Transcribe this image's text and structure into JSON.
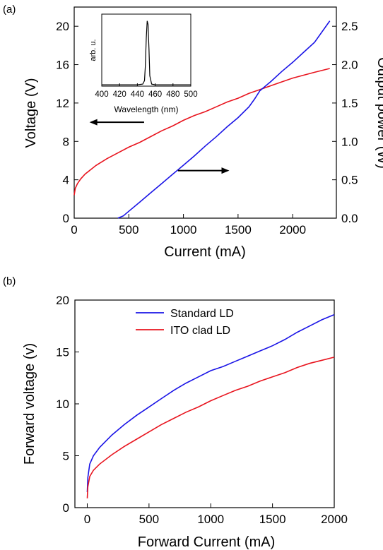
{
  "chart_data": [
    {
      "panel_label": "(a)",
      "type": "line",
      "xlabel": "Current (mA)",
      "ylabel_left": "Voltage (V)",
      "ylabel_right": "Output power (W)",
      "xlim": [
        0,
        2400
      ],
      "ylim_left": [
        0,
        22
      ],
      "ylim_right": [
        0,
        2.75
      ],
      "xticks": [
        0,
        500,
        1000,
        1500,
        2000
      ],
      "yticks_left": [
        0,
        4,
        8,
        12,
        16,
        20
      ],
      "yticks_right": [
        0.0,
        0.5,
        1.0,
        1.5,
        2.0,
        2.5
      ],
      "grid": false,
      "series": [
        {
          "axis": "left",
          "color": "#e8141e",
          "points": [
            [
              0,
              2.4
            ],
            [
              10,
              3.1
            ],
            [
              30,
              3.6
            ],
            [
              60,
              4.1
            ],
            [
              100,
              4.6
            ],
            [
              200,
              5.5
            ],
            [
              300,
              6.2
            ],
            [
              400,
              6.8
            ],
            [
              500,
              7.4
            ],
            [
              600,
              7.9
            ],
            [
              700,
              8.5
            ],
            [
              800,
              9.1
            ],
            [
              900,
              9.6
            ],
            [
              1000,
              10.2
            ],
            [
              1100,
              10.7
            ],
            [
              1200,
              11.1
            ],
            [
              1300,
              11.6
            ],
            [
              1400,
              12.1
            ],
            [
              1500,
              12.5
            ],
            [
              1600,
              13.0
            ],
            [
              1700,
              13.4
            ],
            [
              1800,
              13.8
            ],
            [
              1900,
              14.2
            ],
            [
              2000,
              14.6
            ],
            [
              2100,
              14.9
            ],
            [
              2200,
              15.2
            ],
            [
              2340,
              15.6
            ]
          ]
        },
        {
          "axis": "right",
          "color": "#1a14e6",
          "points": [
            [
              400,
              0.0
            ],
            [
              450,
              0.03
            ],
            [
              500,
              0.09
            ],
            [
              600,
              0.21
            ],
            [
              700,
              0.33
            ],
            [
              800,
              0.45
            ],
            [
              900,
              0.57
            ],
            [
              1000,
              0.69
            ],
            [
              1100,
              0.81
            ],
            [
              1200,
              0.94
            ],
            [
              1300,
              1.06
            ],
            [
              1400,
              1.19
            ],
            [
              1500,
              1.31
            ],
            [
              1600,
              1.45
            ],
            [
              1650,
              1.55
            ],
            [
              1700,
              1.66
            ],
            [
              1800,
              1.78
            ],
            [
              1900,
              1.91
            ],
            [
              2000,
              2.03
            ],
            [
              2100,
              2.16
            ],
            [
              2200,
              2.29
            ],
            [
              2340,
              2.57
            ]
          ]
        }
      ],
      "arrows": [
        {
          "direction": "left",
          "points_to": "left axis",
          "from": [
            640,
            10.0
          ],
          "to": [
            140,
            10.0
          ]
        },
        {
          "direction": "right",
          "points_to": "right axis",
          "from": [
            950,
            0.62
          ],
          "to": [
            1420,
            0.62
          ]
        }
      ],
      "inset": {
        "type": "line",
        "xlabel": "Wavelength (nm)",
        "ylabel": "arb. u.",
        "xlim": [
          400,
          500
        ],
        "ylim": [
          0,
          1.05
        ],
        "xticks": [
          400,
          420,
          440,
          460,
          480,
          500
        ],
        "color": "#000000",
        "points": [
          [
            400,
            0.02
          ],
          [
            440,
            0.02
          ],
          [
            446,
            0.03
          ],
          [
            448,
            0.08
          ],
          [
            449,
            0.3
          ],
          [
            450,
            0.7
          ],
          [
            451,
            0.95
          ],
          [
            452,
            0.9
          ],
          [
            453,
            0.55
          ],
          [
            454,
            0.15
          ],
          [
            456,
            0.03
          ],
          [
            460,
            0.02
          ],
          [
            500,
            0.02
          ]
        ]
      }
    },
    {
      "panel_label": "(b)",
      "type": "line",
      "xlabel": "Forward Current (mA)",
      "ylabel": "Forward voltage (v)",
      "xlim": [
        -100,
        2000
      ],
      "ylim": [
        0,
        20
      ],
      "xticks": [
        0,
        500,
        1000,
        1500,
        2000
      ],
      "yticks": [
        0,
        5,
        10,
        15,
        20
      ],
      "grid": false,
      "legend_position": "top-center",
      "series": [
        {
          "name": "Standard LD",
          "color": "#1a14e6",
          "points": [
            [
              0,
              1.5
            ],
            [
              5,
              2.9
            ],
            [
              20,
              4.2
            ],
            [
              50,
              5.0
            ],
            [
              100,
              5.8
            ],
            [
              200,
              7.0
            ],
            [
              300,
              8.0
            ],
            [
              400,
              8.9
            ],
            [
              500,
              9.7
            ],
            [
              600,
              10.5
            ],
            [
              700,
              11.3
            ],
            [
              800,
              12.0
            ],
            [
              900,
              12.6
            ],
            [
              1000,
              13.2
            ],
            [
              1100,
              13.6
            ],
            [
              1200,
              14.1
            ],
            [
              1300,
              14.6
            ],
            [
              1400,
              15.1
            ],
            [
              1500,
              15.6
            ],
            [
              1600,
              16.2
            ],
            [
              1700,
              16.9
            ],
            [
              1800,
              17.5
            ],
            [
              1900,
              18.1
            ],
            [
              2000,
              18.6
            ]
          ]
        },
        {
          "name": "ITO clad LD",
          "color": "#e8141e",
          "points": [
            [
              0,
              0.9
            ],
            [
              5,
              2.0
            ],
            [
              20,
              3.0
            ],
            [
              50,
              3.6
            ],
            [
              100,
              4.2
            ],
            [
              200,
              5.1
            ],
            [
              300,
              5.9
            ],
            [
              400,
              6.6
            ],
            [
              500,
              7.3
            ],
            [
              600,
              8.0
            ],
            [
              700,
              8.6
            ],
            [
              800,
              9.2
            ],
            [
              900,
              9.7
            ],
            [
              1000,
              10.3
            ],
            [
              1100,
              10.8
            ],
            [
              1200,
              11.3
            ],
            [
              1300,
              11.7
            ],
            [
              1400,
              12.2
            ],
            [
              1500,
              12.6
            ],
            [
              1600,
              13.0
            ],
            [
              1700,
              13.5
            ],
            [
              1800,
              13.9
            ],
            [
              1900,
              14.2
            ],
            [
              2000,
              14.5
            ]
          ]
        }
      ]
    }
  ]
}
